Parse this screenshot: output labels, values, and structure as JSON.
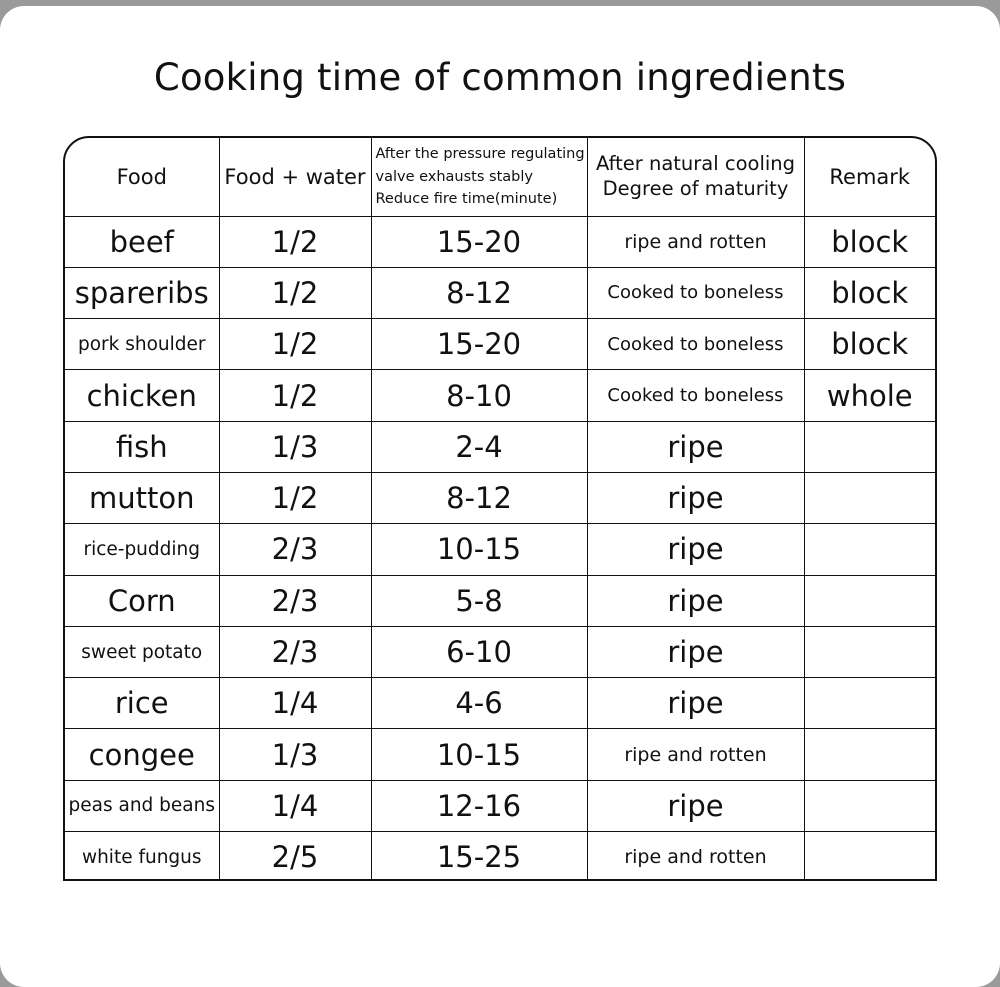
{
  "title": "Cooking time of common ingredients",
  "headers": {
    "food": "Food",
    "water": "Food + water",
    "time_line1": "After the pressure regulating",
    "time_line2": "valve exhausts stably",
    "time_line3": "Reduce fire time(minute)",
    "cooling_line1": "After natural cooling",
    "cooling_line2": "Degree of maturity",
    "remark": "Remark"
  },
  "rows": [
    {
      "food": "beef",
      "water": "1/2",
      "time": "15-20",
      "maturity": "ripe and rotten",
      "remark": "block"
    },
    {
      "food": "spareribs",
      "water": "1/2",
      "time": "8-12",
      "maturity": "Cooked to boneless",
      "remark": "block"
    },
    {
      "food": "pork shoulder",
      "water": "1/2",
      "time": "15-20",
      "maturity": "Cooked to boneless",
      "remark": "block"
    },
    {
      "food": "chicken",
      "water": "1/2",
      "time": "8-10",
      "maturity": "Cooked to boneless",
      "remark": "whole"
    },
    {
      "food": "fish",
      "water": "1/3",
      "time": "2-4",
      "maturity": "ripe",
      "remark": ""
    },
    {
      "food": "mutton",
      "water": "1/2",
      "time": "8-12",
      "maturity": "ripe",
      "remark": ""
    },
    {
      "food": "rice-pudding",
      "water": "2/3",
      "time": "10-15",
      "maturity": "ripe",
      "remark": ""
    },
    {
      "food": "Corn",
      "water": "2/3",
      "time": "5-8",
      "maturity": "ripe",
      "remark": ""
    },
    {
      "food": "sweet potato",
      "water": "2/3",
      "time": "6-10",
      "maturity": "ripe",
      "remark": ""
    },
    {
      "food": "rice",
      "water": "1/4",
      "time": "4-6",
      "maturity": "ripe",
      "remark": ""
    },
    {
      "food": "congee",
      "water": "1/3",
      "time": "10-15",
      "maturity": "ripe and rotten",
      "remark": ""
    },
    {
      "food": "peas and beans",
      "water": "1/4",
      "time": "12-16",
      "maturity": "ripe",
      "remark": ""
    },
    {
      "food": "white fungus",
      "water": "2/5",
      "time": "15-25",
      "maturity": "ripe and rotten",
      "remark": ""
    }
  ]
}
